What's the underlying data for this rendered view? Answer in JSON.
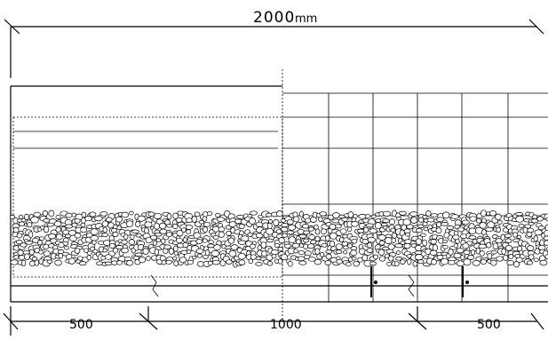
{
  "dimensions": {
    "overall_value": "2000",
    "overall_unit": "mm",
    "segments": [
      "500",
      "1000",
      "500"
    ]
  }
}
